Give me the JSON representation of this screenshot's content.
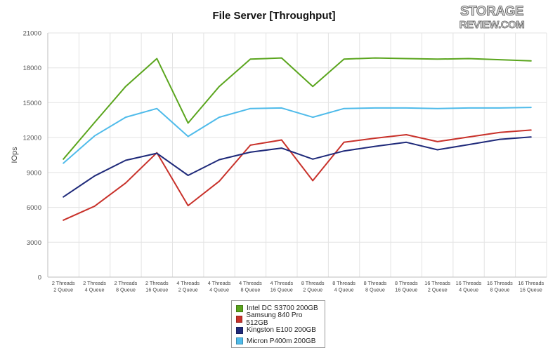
{
  "logo_text": [
    "STORAGE",
    "REVIEW.COM"
  ],
  "chart_data": {
    "type": "line",
    "title": "File Server [Throughput]",
    "xlabel": "",
    "ylabel": "IOps",
    "ylim": [
      0,
      21000
    ],
    "yticks": [
      0,
      3000,
      6000,
      9000,
      12000,
      15000,
      18000,
      21000
    ],
    "ytick_labels": [
      "0",
      "3000",
      "6000",
      "9000",
      "12000",
      "15000",
      "18000",
      "21000"
    ],
    "grid": true,
    "legend_position": "bottom-center",
    "categories": [
      [
        "2 Threads",
        "2 Queue"
      ],
      [
        "2 Threads",
        "4 Queue"
      ],
      [
        "2 Threads",
        "8 Queue"
      ],
      [
        "2 Threads",
        "16 Queue"
      ],
      [
        "4 Threads",
        "2 Queue"
      ],
      [
        "4 Threads",
        "4 Queue"
      ],
      [
        "4 Threads",
        "8 Queue"
      ],
      [
        "4 Threads",
        "16 Queue"
      ],
      [
        "8 Threads",
        "2 Queue"
      ],
      [
        "8 Threads",
        "4 Queue"
      ],
      [
        "8 Threads",
        "8 Queue"
      ],
      [
        "8 Threads",
        "16 Queue"
      ],
      [
        "16 Threads",
        "2 Queue"
      ],
      [
        "16 Threads",
        "4 Queue"
      ],
      [
        "16 Threads",
        "8 Queue"
      ],
      [
        "16 Threads",
        "16 Queue"
      ]
    ],
    "series": [
      {
        "name": "Intel DC S3700 200GB",
        "color": "#5aa51d",
        "values": [
          10150,
          13300,
          16400,
          18800,
          13250,
          16400,
          18750,
          18850,
          16400,
          18750,
          18850,
          18800,
          18750,
          18800,
          18700,
          18600
        ]
      },
      {
        "name": "Samsung 840 Pro 512GB",
        "color": "#c8312a",
        "values": [
          4900,
          6100,
          8100,
          10700,
          6150,
          8250,
          11350,
          11800,
          8300,
          11600,
          11950,
          12250,
          11650,
          12050,
          12450,
          12650
        ]
      },
      {
        "name": "Kingston E100 200GB",
        "color": "#1f2a7a",
        "values": [
          6900,
          8700,
          10050,
          10650,
          8750,
          10100,
          10750,
          11100,
          10150,
          10850,
          11250,
          11600,
          10950,
          11400,
          11850,
          12050
        ]
      },
      {
        "name": "Micron P400m 200GB",
        "color": "#4fbbea",
        "values": [
          9800,
          12150,
          13750,
          14500,
          12100,
          13750,
          14500,
          14550,
          13750,
          14500,
          14550,
          14550,
          14500,
          14550,
          14550,
          14600
        ]
      }
    ]
  }
}
